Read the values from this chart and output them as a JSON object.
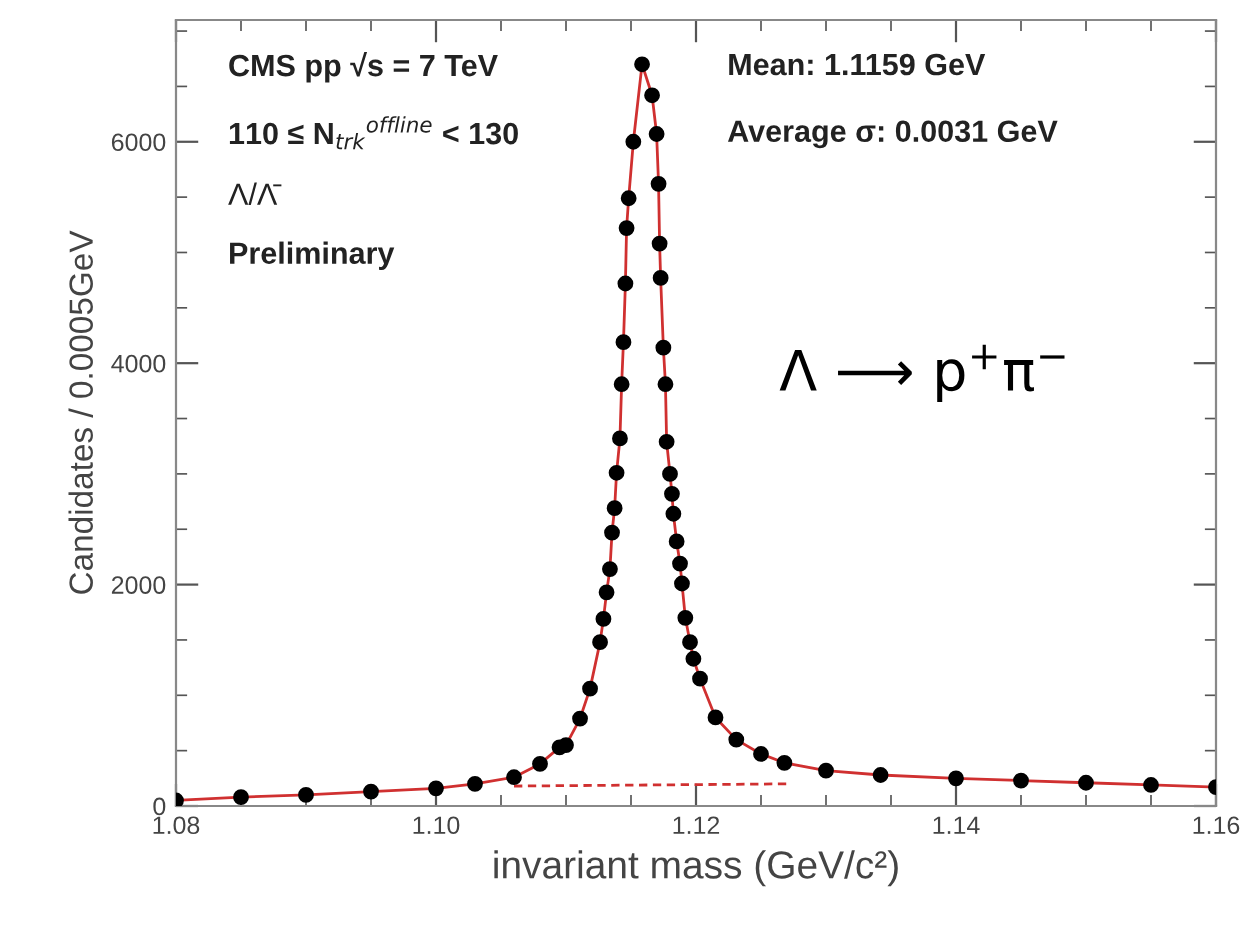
{
  "chart_data": {
    "type": "scatter",
    "xlabel": "invariant mass (GeV/c²)",
    "ylabel": "Candidates / 0.0005GeV",
    "xlim": [
      1.08,
      1.16
    ],
    "ylim": [
      0,
      7100
    ],
    "xticks": [
      {
        "value": 1.08,
        "label": "1.08"
      },
      {
        "value": 1.085,
        "label": null
      },
      {
        "value": 1.09,
        "label": null
      },
      {
        "value": 1.095,
        "label": null
      },
      {
        "value": 1.1,
        "label": "1.10"
      },
      {
        "value": 1.105,
        "label": null
      },
      {
        "value": 1.11,
        "label": null
      },
      {
        "value": 1.115,
        "label": null
      },
      {
        "value": 1.12,
        "label": "1.12"
      },
      {
        "value": 1.125,
        "label": null
      },
      {
        "value": 1.13,
        "label": null
      },
      {
        "value": 1.135,
        "label": null
      },
      {
        "value": 1.14,
        "label": "1.14"
      },
      {
        "value": 1.145,
        "label": null
      },
      {
        "value": 1.15,
        "label": null
      },
      {
        "value": 1.155,
        "label": null
      },
      {
        "value": 1.16,
        "label": "1.16"
      }
    ],
    "yticks": [
      0,
      {
        "value": 500,
        "label": null
      },
      {
        "value": 1000,
        "label": null
      },
      {
        "value": 1500,
        "label": null
      },
      2000,
      {
        "value": 2500,
        "label": null
      },
      {
        "value": 3000,
        "label": null
      },
      {
        "value": 3500,
        "label": null
      },
      4000,
      {
        "value": 4500,
        "label": null
      },
      {
        "value": 5000,
        "label": null
      },
      {
        "value": 5500,
        "label": null
      },
      6000,
      {
        "value": 6500,
        "label": null
      },
      {
        "value": 7000,
        "label": null
      }
    ],
    "grid": false,
    "legend": false,
    "series": [
      {
        "type": "line",
        "color": "#d03030",
        "line_style": "solid",
        "marker": "none",
        "x": [
          1.08,
          1.085,
          1.09,
          1.095,
          1.1,
          1.103,
          1.106,
          1.108,
          1.1095,
          1.11,
          1.11108,
          1.11185,
          1.11262,
          1.11288,
          1.11312,
          1.11338,
          1.11354,
          1.11374,
          1.11389,
          1.11415,
          1.11428,
          1.11442,
          1.11457,
          1.11466,
          1.11482,
          1.11518,
          1.11585,
          1.11662,
          1.11697,
          1.11712,
          1.1172,
          1.11728,
          1.11749,
          1.11765,
          1.11774,
          1.118,
          1.11815,
          1.11826,
          1.11851,
          1.11877,
          1.11892,
          1.11918,
          1.11954,
          1.1198,
          1.12031,
          1.1215,
          1.1231,
          1.125,
          1.1268,
          1.13,
          1.1342,
          1.14,
          1.145,
          1.15,
          1.155,
          1.16
        ],
        "values": [
          50,
          80,
          100,
          130,
          160,
          200,
          260,
          380,
          530,
          550,
          790,
          1060,
          1480,
          1690,
          1930,
          2140,
          2470,
          2690,
          3010,
          3320,
          3810,
          4190,
          4720,
          5220,
          5490,
          6000,
          6700,
          6420,
          6070,
          5620,
          5080,
          4770,
          4140,
          3810,
          3290,
          3000,
          2820,
          2640,
          2390,
          2190,
          2010,
          1700,
          1480,
          1330,
          1150,
          800,
          600,
          470,
          390,
          320,
          280,
          250,
          230,
          210,
          190,
          170
        ]
      },
      {
        "type": "line",
        "color": "#d03030",
        "line_style": "dashed",
        "marker": "none",
        "x": [
          1.106,
          1.127
        ],
        "values": [
          180,
          200
        ]
      },
      {
        "color": "#000000",
        "marker": "circle",
        "x": [
          1.08,
          1.085,
          1.09,
          1.095,
          1.1,
          1.103,
          1.106,
          1.108,
          1.1095,
          1.11,
          1.11108,
          1.11185,
          1.11262,
          1.11288,
          1.11312,
          1.11338,
          1.11354,
          1.11374,
          1.11389,
          1.11415,
          1.11428,
          1.11442,
          1.11457,
          1.11466,
          1.11482,
          1.11518,
          1.11585,
          1.11662,
          1.11697,
          1.11712,
          1.1172,
          1.11728,
          1.11749,
          1.11765,
          1.11774,
          1.118,
          1.11815,
          1.11826,
          1.11851,
          1.11877,
          1.11892,
          1.11918,
          1.11954,
          1.1198,
          1.12031,
          1.1215,
          1.1231,
          1.125,
          1.1268,
          1.13,
          1.1342,
          1.14,
          1.145,
          1.15,
          1.155,
          1.16
        ],
        "values": [
          50,
          80,
          100,
          130,
          160,
          200,
          260,
          380,
          530,
          550,
          790,
          1060,
          1480,
          1690,
          1930,
          2140,
          2470,
          2690,
          3010,
          3320,
          3810,
          4190,
          4720,
          5220,
          5490,
          6000,
          6700,
          6420,
          6070,
          5620,
          5080,
          4770,
          4140,
          3810,
          3290,
          3000,
          2820,
          2640,
          2390,
          2190,
          2010,
          1700,
          1480,
          1330,
          1150,
          800,
          600,
          470,
          390,
          320,
          280,
          250,
          230,
          210,
          190,
          170
        ]
      }
    ],
    "annotations": [
      "CMS pp √s = 7 TeV",
      "110 ≤ N$_{trk}$$^{offline}$ < 130",
      "Λ/Λ̄",
      "Preliminary",
      "Mean: 1.1159 GeV",
      "Average σ: 0.0031 GeV",
      "Λ ⟶ p$^{+}$π$^{−}$"
    ]
  }
}
